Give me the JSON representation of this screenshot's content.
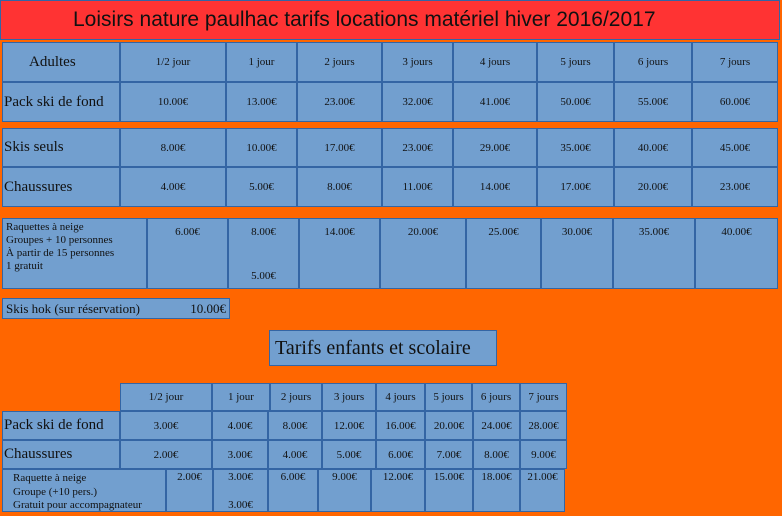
{
  "title": "Loisirs nature paulhac tarifs locations matériel hiver 2016/2017",
  "adults": {
    "header": "Adultes",
    "columns": [
      "1/2 jour",
      "1 jour",
      "2 jours",
      "3 jours",
      "4 jours",
      "5 jours",
      "6 jours",
      "7 jours"
    ],
    "rows": [
      {
        "label": "Pack ski de fond",
        "values": [
          "10.00€",
          "13.00€",
          "23.00€",
          "32.00€",
          "41.00€",
          "50.00€",
          "55.00€",
          "60.00€"
        ]
      },
      {
        "label": "Skis seuls",
        "values": [
          "8.00€",
          "10.00€",
          "17.00€",
          "23.00€",
          "29.00€",
          "35.00€",
          "40.00€",
          "45.00€"
        ]
      },
      {
        "label": "Chaussures",
        "values": [
          "4.00€",
          "5.00€",
          "8.00€",
          "11.00€",
          "14.00€",
          "17.00€",
          "20.00€",
          "23.00€"
        ]
      },
      {
        "label_lines": [
          "Raquettes à neige",
          "Groupes + 10 personnes",
          " À partir de 15 personnes",
          "1 gratuit"
        ],
        "values": [
          "6.00€",
          "8.00€",
          "14.00€",
          "20.00€",
          "25.00€",
          "30.00€",
          "35.00€",
          "40.00€"
        ],
        "group_value": "5.00€"
      }
    ]
  },
  "skis_hok": {
    "label": "Skis hok (sur réservation)",
    "value": "10.00€"
  },
  "children": {
    "title": "Tarifs enfants et scolaire",
    "columns": [
      "1/2 jour",
      "1 jour",
      "2 jours",
      "3 jours",
      "4 jours",
      "5 jours",
      "6 jours",
      "7 jours"
    ],
    "rows": [
      {
        "label": "Pack ski de fond",
        "values": [
          "3.00€",
          "4.00€",
          "8.00€",
          "12.00€",
          "16.00€",
          "20.00€",
          "24.00€",
          "28.00€"
        ]
      },
      {
        "label": "Chaussures",
        "values": [
          "2.00€",
          "3.00€",
          "4.00€",
          "5.00€",
          "6.00€",
          "7.00€",
          "8.00€",
          "9.00€"
        ]
      },
      {
        "label_lines": [
          "Raquette à neige",
          "Groupe (+10 pers.)",
          "Gratuit pour accompagnateur"
        ],
        "values": [
          "2.00€",
          "3.00€",
          "6.00€",
          "9.00€",
          "12.00€",
          "15.00€",
          "18.00€",
          "21.00€"
        ],
        "group_value": "3.00€"
      }
    ]
  }
}
